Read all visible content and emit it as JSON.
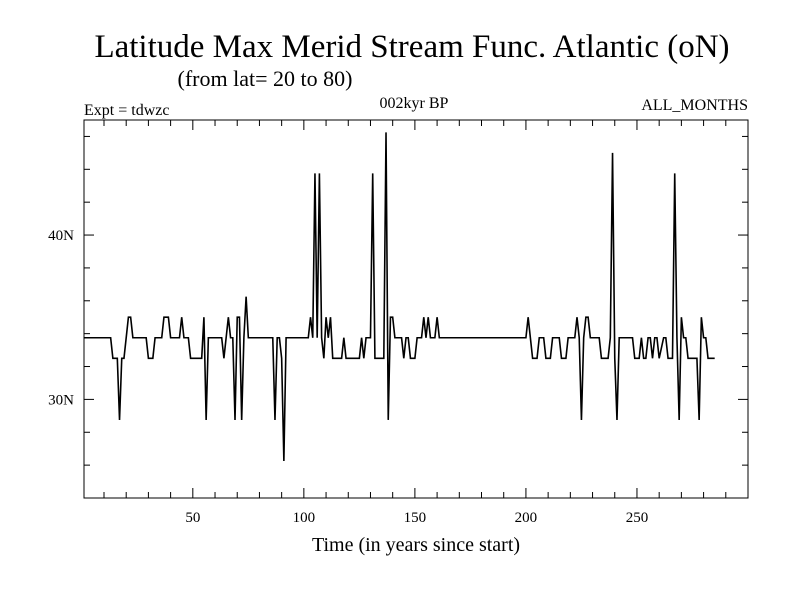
{
  "chart_data": {
    "type": "line",
    "title": "Latitude Max Merid Stream Func. Atlantic (oN)",
    "subtitle": "(from lat= 20 to 80)",
    "experiment_label": "Expt = tdwzc",
    "period_label": "002kyr BP",
    "months_label": "ALL_MONTHS",
    "xlabel": "Time (in years since start)",
    "ylabel": "",
    "xlim": [
      1,
      300
    ],
    "ylim": [
      24,
      47
    ],
    "x_ticks": [
      50,
      100,
      150,
      200,
      250
    ],
    "x_tick_labels": [
      "50",
      "100",
      "150",
      "200",
      "250"
    ],
    "y_ticks": [
      30,
      40
    ],
    "y_tick_labels": [
      "30N",
      "40N"
    ],
    "series": [
      {
        "name": "Latitude Max Merid Stream Func",
        "points": [
          [
            1,
            33.75
          ],
          [
            13,
            33.75
          ],
          [
            14,
            32.5
          ],
          [
            16,
            32.5
          ],
          [
            17,
            28.75
          ],
          [
            18,
            32.5
          ],
          [
            19,
            32.5
          ],
          [
            20,
            33.75
          ],
          [
            21,
            35
          ],
          [
            22,
            35
          ],
          [
            23,
            33.75
          ],
          [
            29,
            33.75
          ],
          [
            30,
            32.5
          ],
          [
            32,
            32.5
          ],
          [
            33,
            33.75
          ],
          [
            36,
            33.75
          ],
          [
            37,
            35
          ],
          [
            39,
            35
          ],
          [
            40,
            33.75
          ],
          [
            44,
            33.75
          ],
          [
            45,
            35
          ],
          [
            46,
            33.75
          ],
          [
            48,
            33.75
          ],
          [
            49,
            32.5
          ],
          [
            53,
            32.5
          ],
          [
            54,
            32.5
          ],
          [
            55,
            35
          ],
          [
            56,
            28.75
          ],
          [
            57,
            33.75
          ],
          [
            63,
            33.75
          ],
          [
            64,
            32.5
          ],
          [
            65,
            33.75
          ],
          [
            66,
            35
          ],
          [
            67,
            33.75
          ],
          [
            68,
            33.75
          ],
          [
            69,
            28.75
          ],
          [
            70,
            35
          ],
          [
            71,
            35
          ],
          [
            72,
            28.75
          ],
          [
            73,
            33.75
          ],
          [
            74,
            36.25
          ],
          [
            75,
            33.75
          ],
          [
            86,
            33.75
          ],
          [
            87,
            28.75
          ],
          [
            88,
            33.75
          ],
          [
            89,
            33.75
          ],
          [
            90,
            32.5
          ],
          [
            91,
            26.25
          ],
          [
            92,
            33.75
          ],
          [
            102,
            33.75
          ],
          [
            103,
            35
          ],
          [
            104,
            33.75
          ],
          [
            105,
            43.75
          ],
          [
            106,
            33.75
          ],
          [
            107,
            43.75
          ],
          [
            108,
            33.75
          ],
          [
            109,
            32.5
          ],
          [
            110,
            35
          ],
          [
            111,
            33.75
          ],
          [
            112,
            35
          ],
          [
            113,
            32.5
          ],
          [
            117,
            32.5
          ],
          [
            118,
            33.75
          ],
          [
            119,
            32.5
          ],
          [
            125,
            32.5
          ],
          [
            126,
            33.75
          ],
          [
            127,
            32.5
          ],
          [
            128,
            33.75
          ],
          [
            130,
            33.75
          ],
          [
            131,
            43.75
          ],
          [
            132,
            32.5
          ],
          [
            136,
            32.5
          ],
          [
            137,
            46.25
          ],
          [
            138,
            28.75
          ],
          [
            139,
            35
          ],
          [
            140,
            35
          ],
          [
            141,
            33.75
          ],
          [
            144,
            33.75
          ],
          [
            145,
            32.5
          ],
          [
            146,
            33.75
          ],
          [
            147,
            33.75
          ],
          [
            148,
            32.5
          ],
          [
            150,
            32.5
          ],
          [
            151,
            33.75
          ],
          [
            153,
            33.75
          ],
          [
            154,
            35
          ],
          [
            155,
            33.75
          ],
          [
            156,
            35
          ],
          [
            157,
            33.75
          ],
          [
            159,
            33.75
          ],
          [
            160,
            35
          ],
          [
            161,
            33.75
          ],
          [
            200,
            33.75
          ],
          [
            201,
            35
          ],
          [
            202,
            33.75
          ],
          [
            203,
            32.5
          ],
          [
            205,
            32.5
          ],
          [
            206,
            33.75
          ],
          [
            208,
            33.75
          ],
          [
            209,
            32.5
          ],
          [
            211,
            32.5
          ],
          [
            212,
            33.75
          ],
          [
            215,
            33.75
          ],
          [
            216,
            32.5
          ],
          [
            218,
            32.5
          ],
          [
            219,
            33.75
          ],
          [
            222,
            33.75
          ],
          [
            223,
            35
          ],
          [
            224,
            33.75
          ],
          [
            225,
            28.75
          ],
          [
            226,
            33.75
          ],
          [
            227,
            35
          ],
          [
            228,
            35
          ],
          [
            229,
            33.75
          ],
          [
            233,
            33.75
          ],
          [
            234,
            32.5
          ],
          [
            237,
            32.5
          ],
          [
            238,
            33.75
          ],
          [
            239,
            45
          ],
          [
            240,
            32.5
          ],
          [
            241,
            28.75
          ],
          [
            242,
            33.75
          ],
          [
            248,
            33.75
          ],
          [
            249,
            32.5
          ],
          [
            251,
            32.5
          ],
          [
            252,
            33.75
          ],
          [
            253,
            32.5
          ],
          [
            254,
            32.5
          ],
          [
            255,
            33.75
          ],
          [
            256,
            33.75
          ],
          [
            257,
            32.5
          ],
          [
            258,
            33.75
          ],
          [
            259,
            33.75
          ],
          [
            260,
            32.5
          ],
          [
            262,
            33.75
          ],
          [
            263,
            33.75
          ],
          [
            264,
            32.5
          ],
          [
            266,
            32.5
          ],
          [
            267,
            43.75
          ],
          [
            268,
            33.75
          ],
          [
            269,
            28.75
          ],
          [
            270,
            35
          ],
          [
            271,
            33.75
          ],
          [
            272,
            33.75
          ],
          [
            273,
            32.5
          ],
          [
            277,
            32.5
          ],
          [
            278,
            28.75
          ],
          [
            279,
            35
          ],
          [
            280,
            33.75
          ],
          [
            281,
            33.75
          ],
          [
            282,
            32.5
          ],
          [
            284,
            32.5
          ],
          [
            285,
            32.5
          ]
        ]
      }
    ]
  }
}
